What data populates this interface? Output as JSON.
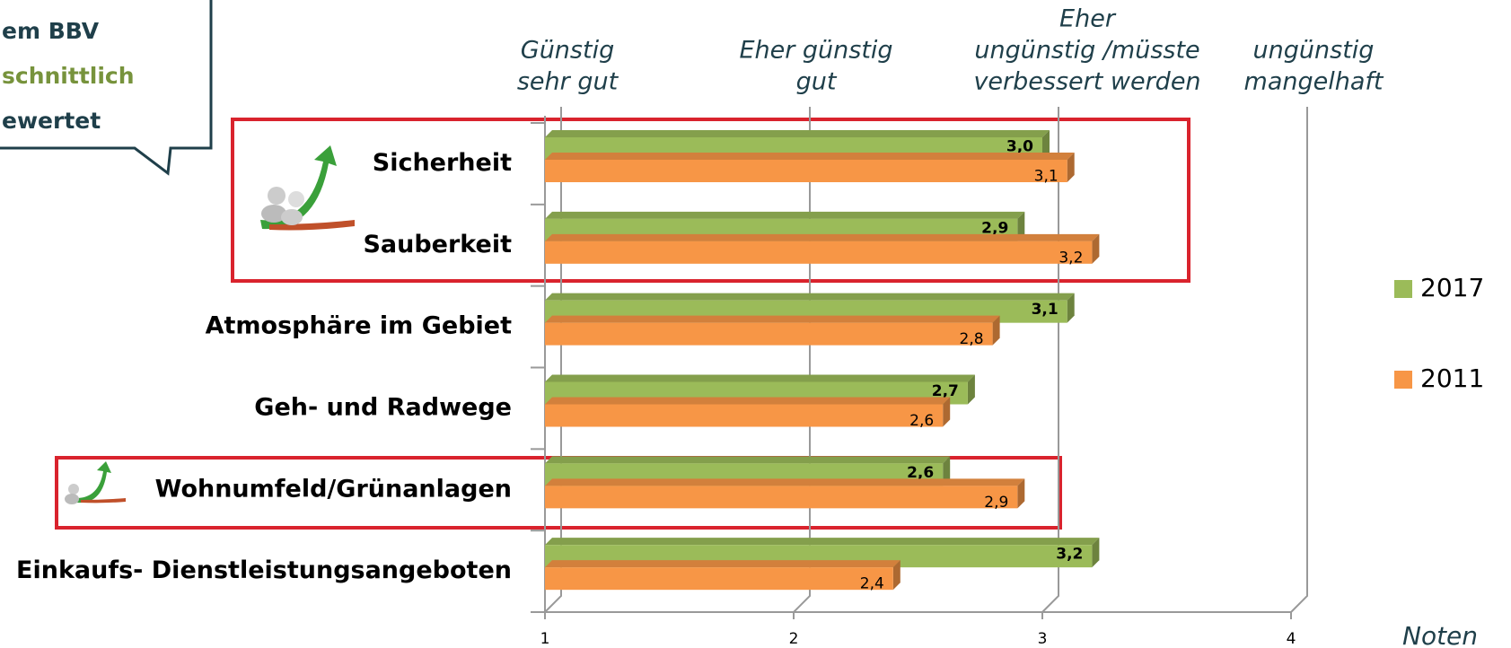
{
  "chart_data": {
    "type": "bar3d",
    "callout": [
      "em BBV",
      "schnittlich",
      "ewertet"
    ],
    "scale_labels": [
      {
        "value": 1,
        "lines": [
          "Günstig",
          "sehr gut"
        ]
      },
      {
        "value": 2,
        "lines": [
          "Eher günstig",
          "gut"
        ]
      },
      {
        "value": 3,
        "lines": [
          "Eher",
          "ungünstig /müsste",
          "verbessert werden"
        ]
      },
      {
        "value": 4,
        "lines": [
          "ungünstig",
          "mangelhaft"
        ]
      }
    ],
    "categories": [
      "Sicherheit",
      "Sauberkeit",
      "Atmosphäre im Gebiet",
      "Geh- und Radwege",
      "Wohnumfeld/Grünanlagen",
      "Einkaufs- Dienstleistungsangeboten"
    ],
    "series": [
      {
        "name": "2017",
        "color": "#9bbb59",
        "values": [
          3.0,
          2.9,
          3.1,
          2.7,
          2.6,
          3.2
        ],
        "value_labels": [
          "3,0",
          "2,9",
          "3,1",
          "2,7",
          "2,6",
          "3,2"
        ]
      },
      {
        "name": "2011",
        "color": "#f79646",
        "values": [
          3.1,
          3.2,
          2.8,
          2.6,
          2.9,
          2.4
        ],
        "value_labels": [
          "3,1",
          "3,2",
          "2,8",
          "2,6",
          "2,9",
          "2,4"
        ]
      }
    ],
    "xlim": [
      1,
      4
    ],
    "xticks": [
      1,
      2,
      3,
      4
    ],
    "xlabel": "Noten",
    "grid": true
  }
}
